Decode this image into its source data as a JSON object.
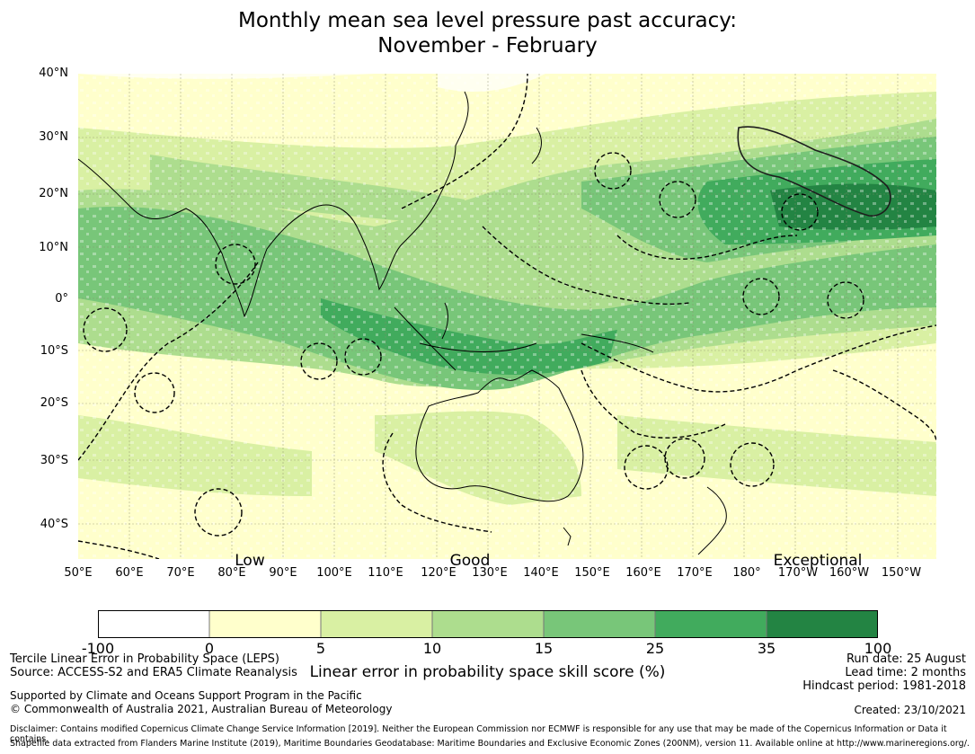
{
  "title": {
    "line1": "Monthly mean sea level pressure past accuracy:",
    "line2": "November - February"
  },
  "map": {
    "lat_labels": [
      "40°N",
      "30°N",
      "20°N",
      "10°N",
      "0°",
      "10°S",
      "20°S",
      "30°S",
      "40°S"
    ],
    "lon_labels": [
      "50°E",
      "60°E",
      "70°E",
      "80°E",
      "90°E",
      "100°E",
      "110°E",
      "120°E",
      "130°E",
      "140°E",
      "150°E",
      "160°E",
      "170°E",
      "180°",
      "170°W",
      "160°W",
      "150°W"
    ],
    "annotations": {
      "low": "Low",
      "good": "Good",
      "exceptional": "Exceptional"
    }
  },
  "colorbar": {
    "ticks": [
      "-100",
      "0",
      "5",
      "10",
      "15",
      "25",
      "35",
      "100"
    ],
    "colors": [
      "#ffffff",
      "#ffffcc",
      "#d9f0a3",
      "#addd8e",
      "#78c679",
      "#41ab5d",
      "#238443"
    ],
    "label": "Linear error in probability space skill score (%)"
  },
  "footer": {
    "left1": "Tercile Linear Error in Probability Space (LEPS)",
    "left2": "Source: ACCESS-S2 and ERA5 Climate Reanalysis",
    "left3": "Supported by Climate and Oceans Support Program in the Pacific",
    "left4": "© Commonwealth of Australia 2021, Australian Bureau of Meteorology",
    "right1": "Run date: 25 August",
    "right2": "Lead time: 2 months",
    "right3": "Hindcast period: 1981-2018",
    "created": "Created: 23/10/2021",
    "disclaimer1": "Disclaimer: Contains modified Copernicus Climate Change Service Information [2019]. Neither the European Commission nor ECMWF is responsible for any use that may be made of the Copernicus Information or Data it contains.",
    "disclaimer2": "Shapefile data extracted from Flanders Marine Institute (2019), Maritime Boundaries Geodatabase: Maritime Boundaries and Exclusive Economic Zones (200NM), version 11. Available online at http://www.marineregions.org/."
  }
}
